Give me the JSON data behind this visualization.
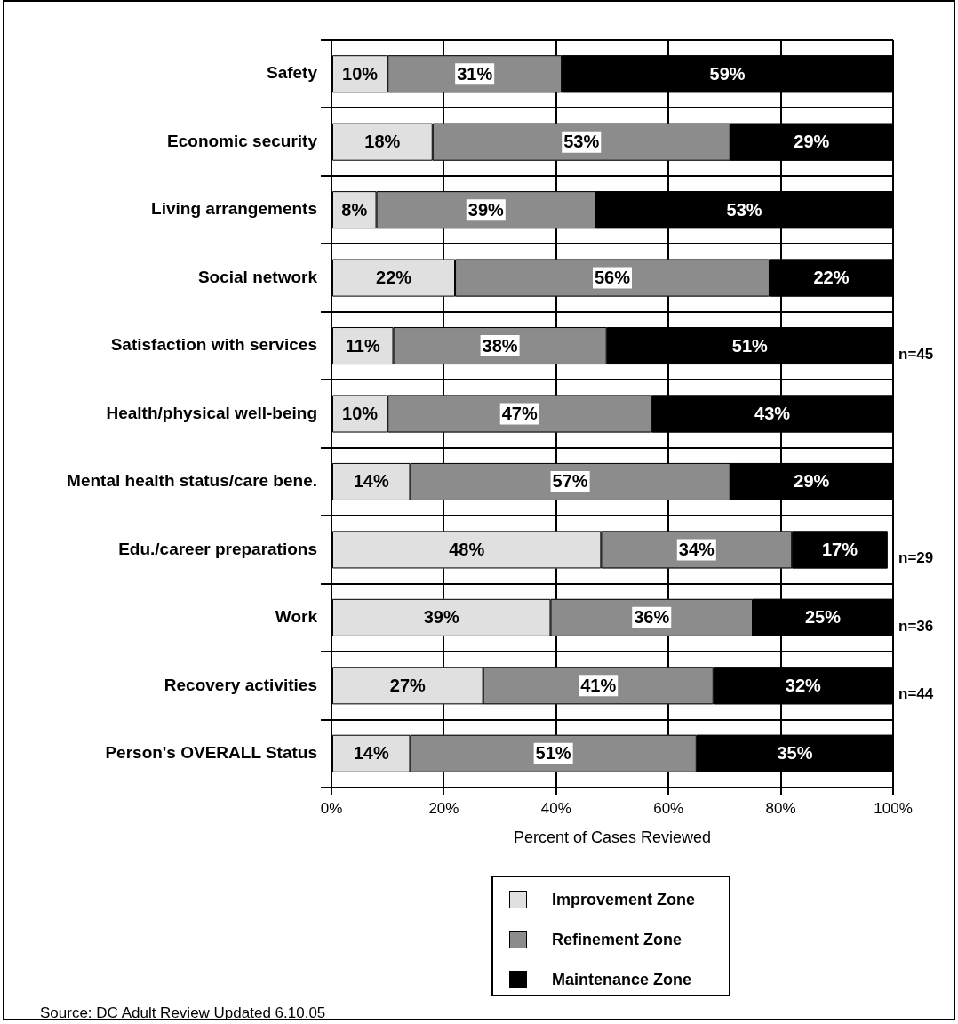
{
  "chart_data": {
    "type": "bar",
    "orientation": "horizontal",
    "stacked": true,
    "categories": [
      "Safety",
      "Economic security",
      "Living arrangements",
      "Social network",
      "Satisfaction with services",
      "Health/physical well-being",
      "Mental health status/care bene.",
      "Edu./career preparations",
      "Work",
      "Recovery activities",
      "Person's OVERALL Status"
    ],
    "series": [
      {
        "name": "Improvement Zone",
        "color": "#e0e0e0",
        "values": [
          10,
          18,
          8,
          22,
          11,
          10,
          14,
          48,
          39,
          27,
          14
        ],
        "value_labels": [
          "10%",
          "18%",
          "8%",
          "22%",
          "11%",
          "10%",
          "14%",
          "48%",
          "39%",
          "27%",
          "14%"
        ]
      },
      {
        "name": "Refinement Zone",
        "color": "#8c8c8c",
        "values": [
          31,
          53,
          39,
          56,
          38,
          47,
          57,
          34,
          36,
          41,
          51
        ],
        "value_labels": [
          "31%",
          "53%",
          "39%",
          "56%",
          "38%",
          "47%",
          "57%",
          "34%",
          "36%",
          "41%",
          "51%"
        ]
      },
      {
        "name": "Maintenance Zone",
        "color": "#000000",
        "values": [
          59,
          29,
          53,
          22,
          51,
          43,
          29,
          17,
          25,
          32,
          35
        ],
        "value_labels": [
          "59%",
          "29%",
          "53%",
          "22%",
          "51%",
          "43%",
          "29%",
          "17%",
          "25%",
          "32%",
          "35%"
        ]
      }
    ],
    "xlabel": "Percent of Cases Reviewed",
    "xlim": [
      0,
      100
    ],
    "xticks": [
      {
        "value": 0,
        "label": "0%"
      },
      {
        "value": 20,
        "label": "20%"
      },
      {
        "value": 40,
        "label": "40%"
      },
      {
        "value": 60,
        "label": "60%"
      },
      {
        "value": 80,
        "label": "80%"
      },
      {
        "value": 100,
        "label": "100%"
      }
    ],
    "grid": true,
    "legend": "bottom",
    "annotations": [
      "n=45",
      "n=29",
      "n=36",
      "n=44",
      "Source: DC Adult Review Updated 6.10.05"
    ]
  }
}
